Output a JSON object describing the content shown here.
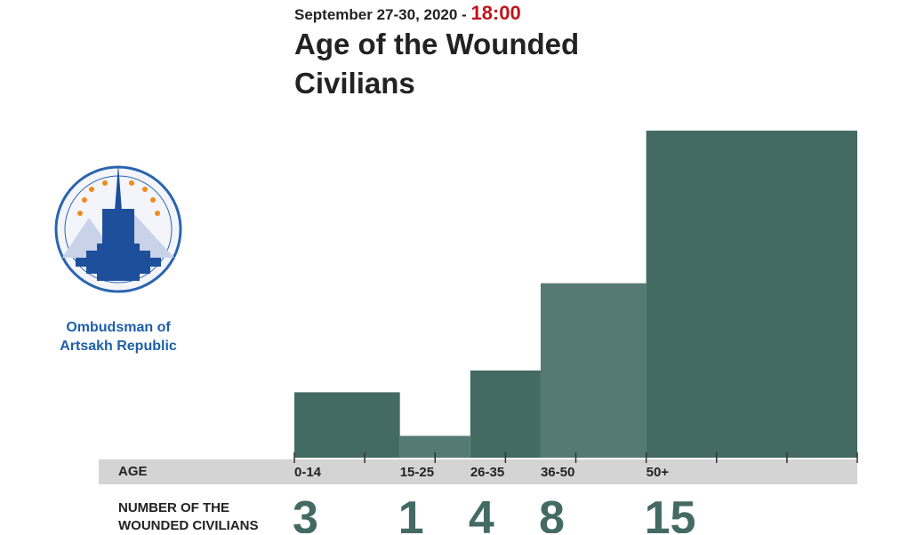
{
  "chart_data": {
    "type": "histogram",
    "date": "September 27-30, 2020 - ",
    "time": "18:00",
    "title": "Age of the Wounded Civilians",
    "organization": "Ombudsman of Artsakh Republic",
    "x_label": "AGE",
    "y_label": "NUMBER OF THE WOUNDED CIVILIANS",
    "categories": [
      "0-14",
      "15-25",
      "26-35",
      "36-50",
      "50+"
    ],
    "bins": [
      0,
      15,
      25,
      35,
      50,
      80
    ],
    "values": [
      3,
      1,
      4,
      8,
      15
    ],
    "colors": [
      "#436a63",
      "#557a73",
      "#436a63",
      "#557a73",
      "#436a63"
    ],
    "xlim": [
      0,
      80
    ],
    "xticks": [
      0,
      10,
      20,
      30,
      40,
      50,
      60,
      70,
      80
    ],
    "ylim": [
      0,
      15
    ]
  }
}
